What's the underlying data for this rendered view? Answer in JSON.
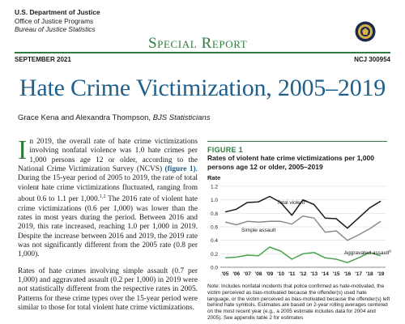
{
  "header": {
    "agency_line1": "U.S. Department of Justice",
    "agency_line2": "Office of Justice Programs",
    "agency_line3": "Bureau of Justice Statistics",
    "report_type": "Special Report",
    "date": "SEPTEMBER 2021",
    "ncj": "NCJ 300954"
  },
  "title": "Hate Crime Victimization, 2005–2019",
  "authors": {
    "names": "Grace Kena and Alexandra Thompson,",
    "role": "BJS Statisticians"
  },
  "body": {
    "drop_cap": "I",
    "p1_a": "n 2019, the overall rate of hate crime victimizations involving nonfatal violence was 1.0 hate crimes per 1,000 persons age 12 or older, according to the National Crime Victimization Survey (NCVS) ",
    "p1_link": "(figure 1)",
    "p1_b": ". During the 15-year period of 2005 to 2019, the rate of total violent hate crime victimizations fluctuated, ranging from about 0.6 to 1.1 per 1,000.",
    "p1_sup": "1,2",
    "p1_c": " The 2016 rate of violent hate crime victimizations (0.6 per 1,000) was lower than the rates in most years during the period. Between 2016 and 2019, this rate increased, reaching 1.0 per 1,000 in 2019. Despite the increase between 2016 and 2019, the 2019 rate was not significantly different from the 2005 rate (0.8 per 1,000).",
    "p2": "Rates of hate crimes involving simple assault (0.7 per 1,000) and aggravated assault (0.2 per 1,000) in 2019 were not statistically different from the respective rates in 2005. Patterns for these crime types over the 15-year period were similar to those for total violent hate crime victimizations."
  },
  "figure": {
    "label": "FIGURE 1",
    "title": "Rates of violent hate crime victimizations per 1,000 persons age 12 or older, 2005–2019",
    "note": "Note: Includes nonfatal incidents that police confirmed as hate-motivated, the victim perceived as bias-motivated because the offender(s) used hate language, or the victim perceived as bias-motivated because the offender(s) left behind hate symbols. Estimates are based on 2-year rolling averages centered on the most recent year (e.g., a 2005 estimate includes data for 2004 and 2005). See appendix table 2 for estimates"
  },
  "chart_data": {
    "type": "line",
    "ylabel": "Rate",
    "ylim": [
      0,
      1.2
    ],
    "yticks": [
      "0.0",
      "0.2",
      "0.4",
      "0.6",
      "0.8",
      "1.0",
      "1.2"
    ],
    "x": [
      "'05",
      "'06",
      "'07",
      "'08",
      "'09",
      "'10",
      "'11",
      "'12",
      "'13",
      "'14",
      "'15",
      "'16",
      "'17",
      "'18",
      "'19"
    ],
    "grid": true,
    "series": [
      {
        "name": "Total violent",
        "sup": "a",
        "color": "#1a1a1a",
        "values": [
          0.82,
          0.86,
          0.96,
          0.97,
          1.05,
          0.96,
          0.77,
          1.0,
          0.93,
          0.73,
          0.72,
          0.58,
          0.73,
          0.88,
          0.98
        ]
      },
      {
        "name": "Simple assault",
        "sup": "",
        "color": "#8a8a8a",
        "values": [
          0.67,
          0.63,
          0.68,
          0.67,
          0.68,
          0.68,
          0.64,
          0.76,
          0.73,
          0.52,
          0.54,
          0.4,
          0.48,
          0.57,
          0.68
        ]
      },
      {
        "name": "Aggravated assault",
        "sup": "b",
        "color": "#4aa34a",
        "values": [
          0.14,
          0.15,
          0.18,
          0.17,
          0.3,
          0.24,
          0.12,
          0.2,
          0.22,
          0.14,
          0.12,
          0.07,
          0.14,
          0.22,
          0.17
        ]
      }
    ]
  },
  "colors": {
    "accent_green": "#2f7d3e",
    "title_blue": "#1f5f8a"
  }
}
